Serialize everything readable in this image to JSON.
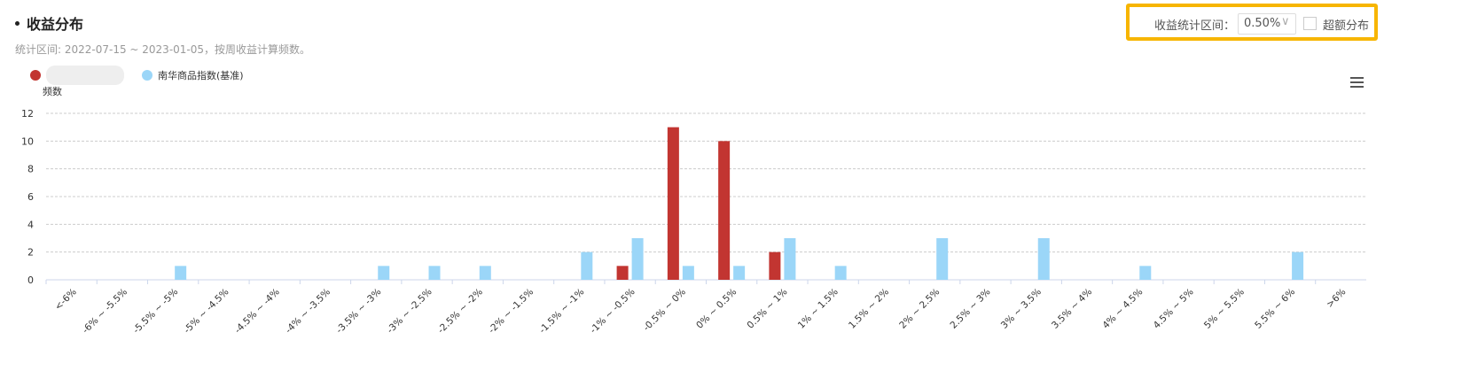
{
  "header": {
    "title": "收益分布",
    "subtitle": "统计区间: 2022-07-15 ~ 2023-01-05，按周收益计算频数。",
    "interval_label": "收益统计区间：",
    "interval_value": "0.50%",
    "excess_label": "超额分布"
  },
  "chart_data": {
    "type": "bar",
    "y_label": "频数",
    "categories": [
      "<-6%",
      "-6% ~ -5.5%",
      "-5.5% ~ -5%",
      "-5% ~ -4.5%",
      "-4.5% ~ -4%",
      "-4% ~ -3.5%",
      "-3.5% ~ -3%",
      "-3% ~ -2.5%",
      "-2.5% ~ -2%",
      "-2% ~ -1.5%",
      "-1.5% ~ -1%",
      "-1% ~ -0.5%",
      "-0.5% ~ 0%",
      "0% ~ 0.5%",
      "0.5% ~ 1%",
      "1% ~ 1.5%",
      "1.5% ~ 2%",
      "2% ~ 2.5%",
      "2.5% ~ 3%",
      "3% ~ 3.5%",
      "3.5% ~ 4%",
      "4% ~ 4.5%",
      "4.5% ~ 5%",
      "5% ~ 5.5%",
      "5.5% ~ 6%",
      ">6%"
    ],
    "series": [
      {
        "color": "#c23531",
        "values": [
          0,
          0,
          0,
          0,
          0,
          0,
          0,
          0,
          0,
          0,
          0,
          1,
          11,
          10,
          2,
          0,
          0,
          0,
          0,
          0,
          0,
          0,
          0,
          0,
          0,
          0
        ]
      },
      {
        "name": "南华商品指数(基准)",
        "color": "#9bd6f8",
        "values": [
          0,
          0,
          1,
          0,
          0,
          0,
          1,
          1,
          1,
          0,
          2,
          3,
          1,
          1,
          3,
          1,
          0,
          3,
          0,
          3,
          0,
          1,
          0,
          0,
          2,
          0
        ]
      }
    ],
    "ylim": [
      0,
      12
    ],
    "yticks": [
      0,
      2,
      4,
      6,
      8,
      10,
      12
    ],
    "grid": true
  }
}
